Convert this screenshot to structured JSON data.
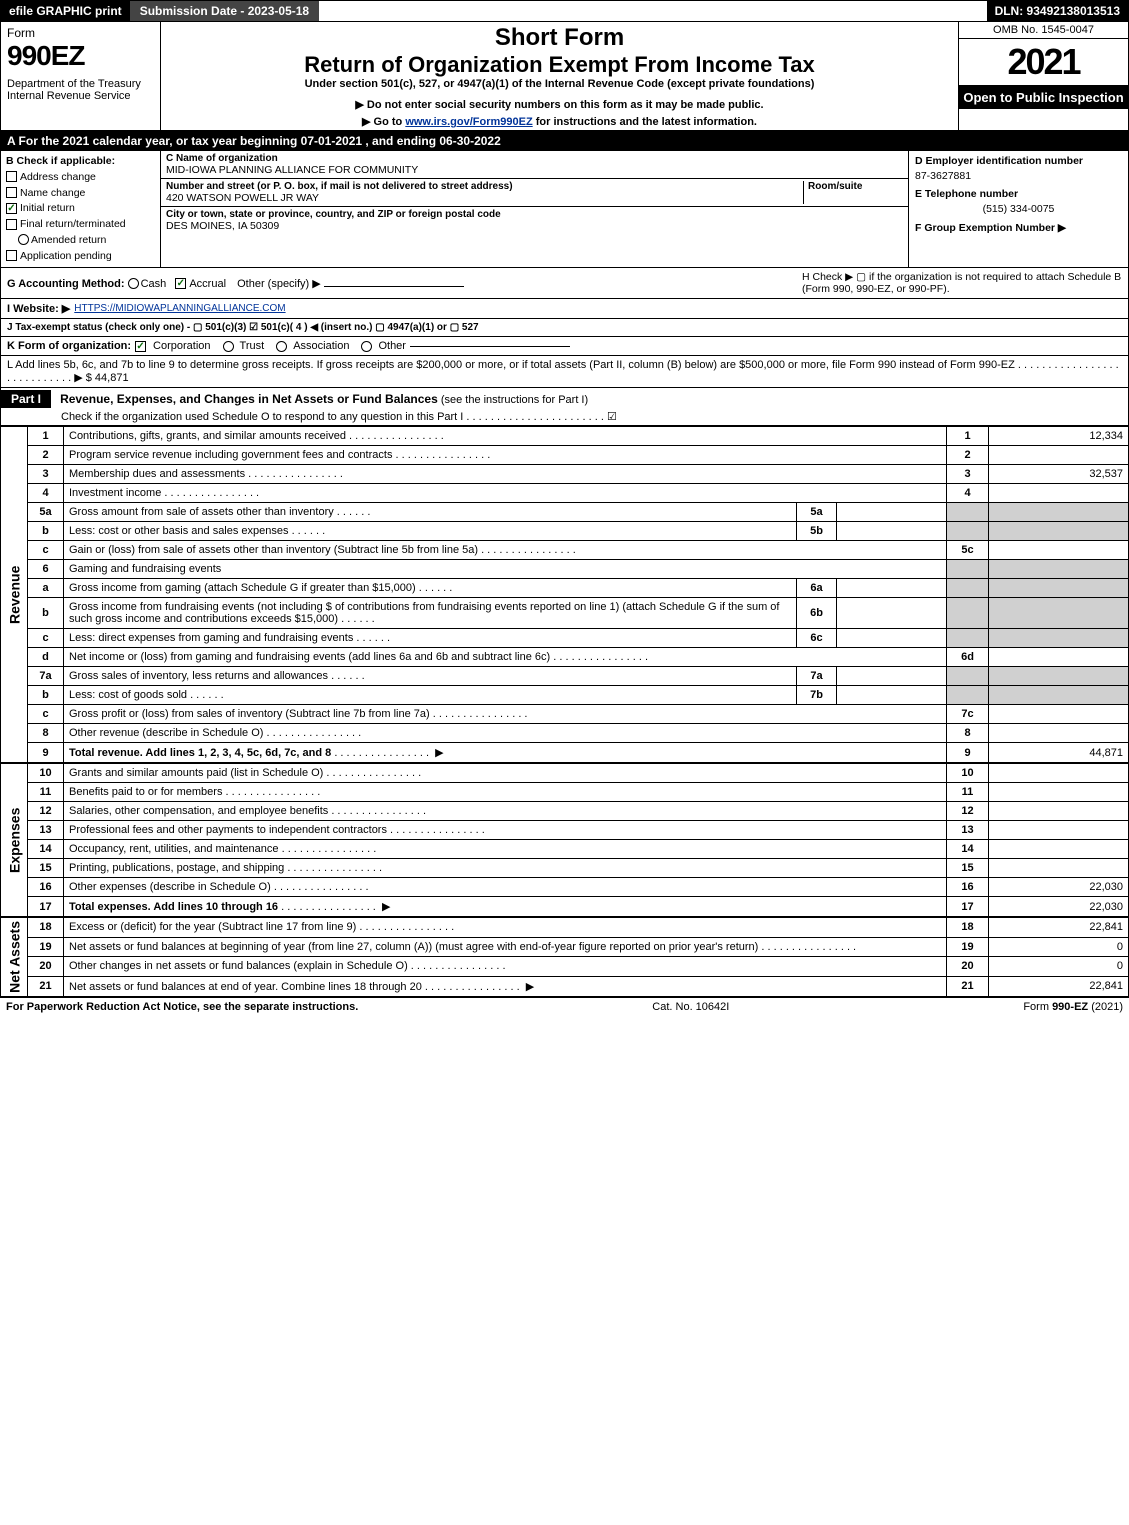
{
  "topbar": {
    "efile": "efile GRAPHIC print",
    "submission": "Submission Date - 2023-05-18",
    "dln_label": "DLN: 93492138013513"
  },
  "header": {
    "form_word": "Form",
    "form_no": "990EZ",
    "dept": "Department of the Treasury\nInternal Revenue Service",
    "short_form": "Short Form",
    "return_title": "Return of Organization Exempt From Income Tax",
    "under_section": "Under section 501(c), 527, or 4947(a)(1) of the Internal Revenue Code (except private foundations)",
    "donot": "▶ Do not enter social security numbers on this form as it may be made public.",
    "goto_pre": "▶ Go to ",
    "goto_link": "www.irs.gov/Form990EZ",
    "goto_post": " for instructions and the latest information.",
    "omb": "OMB No. 1545-0047",
    "year": "2021",
    "open": "Open to Public Inspection"
  },
  "rowA": "A  For the 2021 calendar year, or tax year beginning 07-01-2021 , and ending 06-30-2022",
  "colB": {
    "label": "B  Check if applicable:",
    "addr": "Address change",
    "name": "Name change",
    "init": "Initial return",
    "final": "Final return/terminated",
    "amend": "Amended return",
    "app": "Application pending"
  },
  "colC": {
    "name_label": "C Name of organization",
    "name": "MID-IOWA PLANNING ALLIANCE FOR COMMUNITY",
    "street_label": "Number and street (or P. O. box, if mail is not delivered to street address)",
    "room_label": "Room/suite",
    "street": "420 WATSON POWELL JR WAY",
    "city_label": "City or town, state or province, country, and ZIP or foreign postal code",
    "city": "DES MOINES, IA  50309"
  },
  "colDEF": {
    "d_label": "D Employer identification number",
    "ein": "87-3627881",
    "e_label": "E Telephone number",
    "phone": "(515) 334-0075",
    "f_label": "F Group Exemption Number ▶"
  },
  "rows": {
    "G_label": "G Accounting Method:",
    "G_cash": "Cash",
    "G_accrual": "Accrual",
    "G_other": "Other (specify) ▶",
    "H_text": "H  Check ▶   ▢  if the organization is not required to attach Schedule B (Form 990, 990-EZ, or 990-PF).",
    "I_label": "I Website: ▶",
    "I_url": "HTTPS://MIDIOWAPLANNINGALLIANCE.COM",
    "J_label": "J Tax-exempt status (check only one) - ▢ 501(c)(3)  ☑ 501(c)( 4 ) ◀ (insert no.)  ▢ 4947(a)(1) or  ▢ 527",
    "K_label": "K Form of organization:",
    "K_corp": "Corporation",
    "K_trust": "Trust",
    "K_assoc": "Association",
    "K_other": "Other",
    "L_text": "L Add lines 5b, 6c, and 7b to line 9 to determine gross receipts. If gross receipts are $200,000 or more, or if total assets (Part II, column (B) below) are $500,000 or more, file Form 990 instead of Form 990-EZ  . . . . . . . . . . . . . . . . . . . . . . . . . . . .  ▶ $ 44,871"
  },
  "part1": {
    "tag": "Part I",
    "title": "Revenue, Expenses, and Changes in Net Assets or Fund Balances",
    "title_paren": " (see the instructions for Part I)",
    "sub": "Check if the organization used Schedule O to respond to any question in this Part I . . . . . . . . . . . . . . . . . . . . . . .  ☑"
  },
  "sides": {
    "rev": "Revenue",
    "exp": "Expenses",
    "net": "Net Assets"
  },
  "lines": [
    {
      "n": "1",
      "d": "Contributions, gifts, grants, and similar amounts received",
      "num": "1",
      "val": "12,334"
    },
    {
      "n": "2",
      "d": "Program service revenue including government fees and contracts",
      "num": "2",
      "val": ""
    },
    {
      "n": "3",
      "d": "Membership dues and assessments",
      "num": "3",
      "val": "32,537"
    },
    {
      "n": "4",
      "d": "Investment income",
      "num": "4",
      "val": ""
    },
    {
      "n": "5a",
      "d": "Gross amount from sale of assets other than inventory",
      "sub": "5a",
      "subval": ""
    },
    {
      "n": "b",
      "d": "Less: cost or other basis and sales expenses",
      "sub": "5b",
      "subval": ""
    },
    {
      "n": "c",
      "d": "Gain or (loss) from sale of assets other than inventory (Subtract line 5b from line 5a)",
      "num": "5c",
      "val": ""
    },
    {
      "n": "6",
      "d": "Gaming and fundraising events"
    },
    {
      "n": "a",
      "d": "Gross income from gaming (attach Schedule G if greater than $15,000)",
      "sub": "6a",
      "subval": ""
    },
    {
      "n": "b",
      "d": "Gross income from fundraising events (not including $                    of contributions from fundraising events reported on line 1) (attach Schedule G if the sum of such gross income and contributions exceeds $15,000)",
      "sub": "6b",
      "subval": ""
    },
    {
      "n": "c",
      "d": "Less: direct expenses from gaming and fundraising events",
      "sub": "6c",
      "subval": ""
    },
    {
      "n": "d",
      "d": "Net income or (loss) from gaming and fundraising events (add lines 6a and 6b and subtract line 6c)",
      "num": "6d",
      "val": ""
    },
    {
      "n": "7a",
      "d": "Gross sales of inventory, less returns and allowances",
      "sub": "7a",
      "subval": ""
    },
    {
      "n": "b",
      "d": "Less: cost of goods sold",
      "sub": "7b",
      "subval": ""
    },
    {
      "n": "c",
      "d": "Gross profit or (loss) from sales of inventory (Subtract line 7b from line 7a)",
      "num": "7c",
      "val": ""
    },
    {
      "n": "8",
      "d": "Other revenue (describe in Schedule O)",
      "num": "8",
      "val": ""
    },
    {
      "n": "9",
      "d": "Total revenue. Add lines 1, 2, 3, 4, 5c, 6d, 7c, and 8",
      "num": "9",
      "val": "44,871",
      "bold": true,
      "arrow": true
    }
  ],
  "exp_lines": [
    {
      "n": "10",
      "d": "Grants and similar amounts paid (list in Schedule O)",
      "num": "10",
      "val": ""
    },
    {
      "n": "11",
      "d": "Benefits paid to or for members",
      "num": "11",
      "val": ""
    },
    {
      "n": "12",
      "d": "Salaries, other compensation, and employee benefits",
      "num": "12",
      "val": ""
    },
    {
      "n": "13",
      "d": "Professional fees and other payments to independent contractors",
      "num": "13",
      "val": ""
    },
    {
      "n": "14",
      "d": "Occupancy, rent, utilities, and maintenance",
      "num": "14",
      "val": ""
    },
    {
      "n": "15",
      "d": "Printing, publications, postage, and shipping",
      "num": "15",
      "val": ""
    },
    {
      "n": "16",
      "d": "Other expenses (describe in Schedule O)",
      "num": "16",
      "val": "22,030"
    },
    {
      "n": "17",
      "d": "Total expenses. Add lines 10 through 16",
      "num": "17",
      "val": "22,030",
      "bold": true,
      "arrow": true
    }
  ],
  "net_lines": [
    {
      "n": "18",
      "d": "Excess or (deficit) for the year (Subtract line 17 from line 9)",
      "num": "18",
      "val": "22,841"
    },
    {
      "n": "19",
      "d": "Net assets or fund balances at beginning of year (from line 27, column (A)) (must agree with end-of-year figure reported on prior year's return)",
      "num": "19",
      "val": "0"
    },
    {
      "n": "20",
      "d": "Other changes in net assets or fund balances (explain in Schedule O)",
      "num": "20",
      "val": "0"
    },
    {
      "n": "21",
      "d": "Net assets or fund balances at end of year. Combine lines 18 through 20",
      "num": "21",
      "val": "22,841",
      "arrow": true
    }
  ],
  "footer": {
    "left": "For Paperwork Reduction Act Notice, see the separate instructions.",
    "mid": "Cat. No. 10642I",
    "right_pre": "Form ",
    "right_bold": "990-EZ",
    "right_post": " (2021)"
  }
}
